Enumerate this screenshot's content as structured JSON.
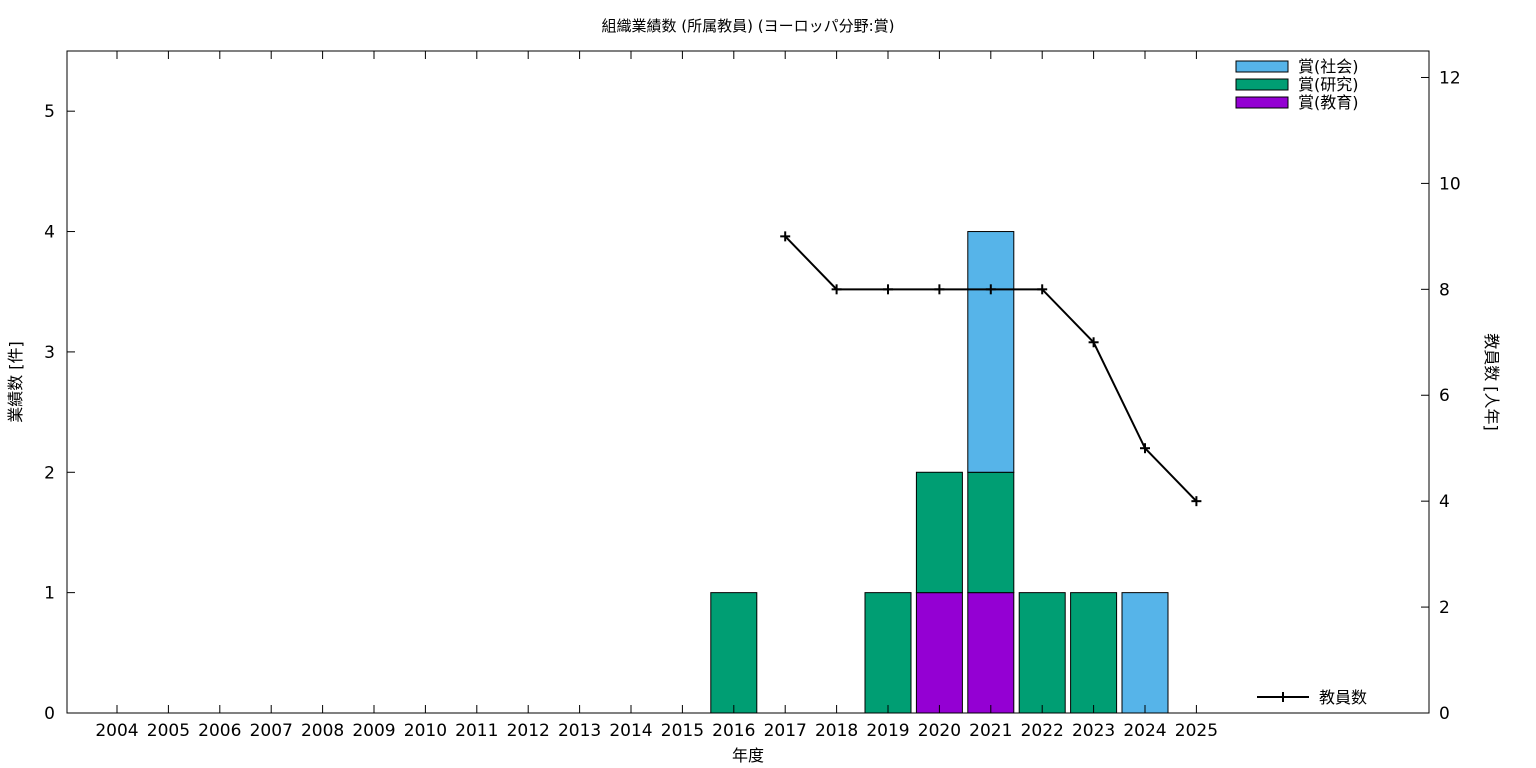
{
  "chart_data": {
    "type": "bar",
    "title": "組織業績数 (所属教員) (ヨーロッパ分野:賞)",
    "xlabel": "年度",
    "ylabel": "業績数 [件]",
    "y2label": "教員数 [人年]",
    "categories": [
      "2004",
      "2005",
      "2006",
      "2007",
      "2008",
      "2009",
      "2010",
      "2011",
      "2012",
      "2013",
      "2014",
      "2015",
      "2016",
      "2017",
      "2018",
      "2019",
      "2020",
      "2021",
      "2022",
      "2023",
      "2024",
      "2025"
    ],
    "stacked": true,
    "ylim": [
      0,
      5.5
    ],
    "yticks": [
      "0",
      "1",
      "2",
      "3",
      "4",
      "5"
    ],
    "y2lim": [
      0,
      12.5
    ],
    "y2ticks": [
      "0",
      "2",
      "4",
      "6",
      "8",
      "10",
      "12"
    ],
    "series": [
      {
        "name": "賞(教育)",
        "color": "#9400d3",
        "values": [
          0,
          0,
          0,
          0,
          0,
          0,
          0,
          0,
          0,
          0,
          0,
          0,
          0,
          0,
          0,
          0,
          1,
          1,
          0,
          0,
          0,
          0
        ]
      },
      {
        "name": "賞(研究)",
        "color": "#009e73",
        "values": [
          0,
          0,
          0,
          0,
          0,
          0,
          0,
          0,
          0,
          0,
          0,
          0,
          1,
          0,
          0,
          1,
          1,
          1,
          1,
          1,
          0,
          0
        ]
      },
      {
        "name": "賞(社会)",
        "color": "#56b4e9",
        "values": [
          0,
          0,
          0,
          0,
          0,
          0,
          0,
          0,
          0,
          0,
          0,
          0,
          0,
          0,
          0,
          0,
          0,
          2,
          0,
          0,
          1,
          0
        ]
      }
    ],
    "legend_order": [
      "賞(社会)",
      "賞(研究)",
      "賞(教育)"
    ],
    "legend_position": "top-right",
    "line_series": {
      "name": "教員数",
      "axis": "right",
      "color": "#000000",
      "x": [
        "2017",
        "2018",
        "2019",
        "2020",
        "2021",
        "2022",
        "2023",
        "2024",
        "2025"
      ],
      "values": [
        9,
        8,
        8,
        8,
        8,
        8,
        7,
        5,
        4
      ],
      "legend_position": "bottom-right"
    },
    "grid": false
  }
}
